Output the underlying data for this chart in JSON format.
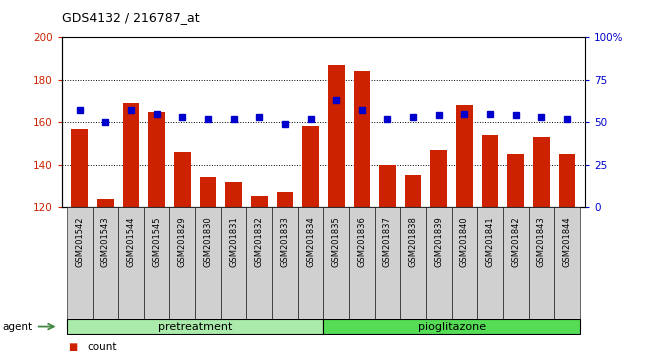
{
  "title": "GDS4132 / 216787_at",
  "samples": [
    "GSM201542",
    "GSM201543",
    "GSM201544",
    "GSM201545",
    "GSM201829",
    "GSM201830",
    "GSM201831",
    "GSM201832",
    "GSM201833",
    "GSM201834",
    "GSM201835",
    "GSM201836",
    "GSM201837",
    "GSM201838",
    "GSM201839",
    "GSM201840",
    "GSM201841",
    "GSM201842",
    "GSM201843",
    "GSM201844"
  ],
  "counts": [
    157,
    124,
    169,
    165,
    146,
    134,
    132,
    125,
    127,
    158,
    187,
    184,
    140,
    135,
    147,
    168,
    154,
    145,
    153,
    145
  ],
  "percentiles": [
    57,
    50,
    57,
    55,
    53,
    52,
    52,
    53,
    49,
    52,
    63,
    57,
    52,
    53,
    54,
    55,
    55,
    54,
    53,
    52
  ],
  "pretreatment_count": 10,
  "ylim_left": [
    120,
    200
  ],
  "ylim_right": [
    0,
    100
  ],
  "yticks_left": [
    120,
    140,
    160,
    180,
    200
  ],
  "yticks_right": [
    0,
    25,
    50,
    75,
    100
  ],
  "bar_color": "#cc2200",
  "dot_color": "#0000cc",
  "pretreatment_color": "#aaeaaa",
  "pioglitazone_color": "#55dd55",
  "agent_arrow_color": "#448844",
  "grid_color": "#000000",
  "xticklabel_bg": "#d0d0d0"
}
